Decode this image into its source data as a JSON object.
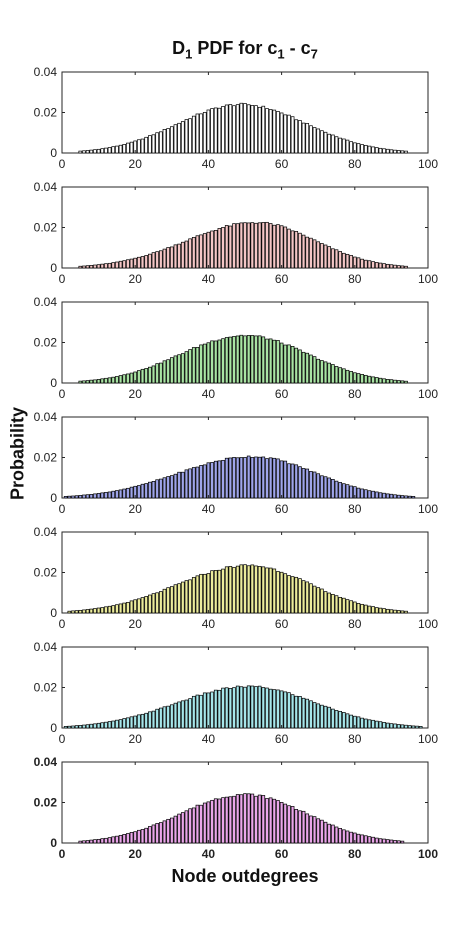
{
  "title": {
    "main": "D",
    "sub1": "1",
    "mid": " PDF for c",
    "sub2": "1",
    "dash": " - c",
    "sub3": "7"
  },
  "xlabel": "Node outdegrees",
  "ylabel": "Probability",
  "chart_data": [
    {
      "type": "bar",
      "panel": 1,
      "color": "#ffffff",
      "xlim": [
        0,
        100
      ],
      "ylim": [
        0,
        0.04
      ],
      "xticks": [
        0,
        20,
        40,
        60,
        80,
        100
      ],
      "yticks": [
        "0",
        "0.02",
        "0.04"
      ],
      "x_range": [
        5,
        94
      ],
      "peak": {
        "x": 49,
        "y": 0.024
      },
      "bold_ticks": false
    },
    {
      "type": "bar",
      "panel": 2,
      "color": "#f4c6c6",
      "xlim": [
        0,
        100
      ],
      "ylim": [
        0,
        0.04
      ],
      "xticks": [
        0,
        20,
        40,
        60,
        80,
        100
      ],
      "yticks": [
        "0",
        "0.02",
        "0.04"
      ],
      "x_range": [
        5,
        94
      ],
      "peak": {
        "x": 53,
        "y": 0.0225
      },
      "bold_ticks": false
    },
    {
      "type": "bar",
      "panel": 3,
      "color": "#a9e4a4",
      "xlim": [
        0,
        100
      ],
      "ylim": [
        0,
        0.04
      ],
      "xticks": [
        0,
        20,
        40,
        60,
        80,
        100
      ],
      "yticks": [
        "0",
        "0.02",
        "0.04"
      ],
      "x_range": [
        5,
        94
      ],
      "peak": {
        "x": 50,
        "y": 0.0235
      },
      "bold_ticks": false
    },
    {
      "type": "bar",
      "panel": 4,
      "color": "#9fa5ea",
      "xlim": [
        0,
        100
      ],
      "ylim": [
        0,
        0.04
      ],
      "xticks": [
        0,
        20,
        40,
        60,
        80,
        100
      ],
      "yticks": [
        "0",
        "0.02",
        "0.04"
      ],
      "x_range": [
        1,
        96
      ],
      "peak": {
        "x": 52,
        "y": 0.0205
      },
      "bold_ticks": false
    },
    {
      "type": "bar",
      "panel": 5,
      "color": "#ecec9c",
      "xlim": [
        0,
        100
      ],
      "ylim": [
        0,
        0.04
      ],
      "xticks": [
        0,
        20,
        40,
        60,
        80,
        100
      ],
      "yticks": [
        "0",
        "0.02",
        "0.04"
      ],
      "x_range": [
        2,
        94
      ],
      "peak": {
        "x": 51,
        "y": 0.0235
      },
      "bold_ticks": false
    },
    {
      "type": "bar",
      "panel": 6,
      "color": "#a6e6ea",
      "xlim": [
        0,
        100
      ],
      "ylim": [
        0,
        0.04
      ],
      "xticks": [
        0,
        20,
        40,
        60,
        80,
        100
      ],
      "yticks": [
        "0",
        "0.02",
        "0.04"
      ],
      "x_range": [
        1,
        98
      ],
      "peak": {
        "x": 51,
        "y": 0.0205
      },
      "bold_ticks": false
    },
    {
      "type": "bar",
      "panel": 7,
      "color": "#eaa6ea",
      "xlim": [
        0,
        100
      ],
      "ylim": [
        0,
        0.04
      ],
      "xticks": [
        0,
        20,
        40,
        60,
        80,
        100
      ],
      "yticks": [
        "0",
        "0.02",
        "0.04"
      ],
      "x_range": [
        5,
        93
      ],
      "peak": {
        "x": 50,
        "y": 0.024
      },
      "bold_ticks": true
    }
  ]
}
